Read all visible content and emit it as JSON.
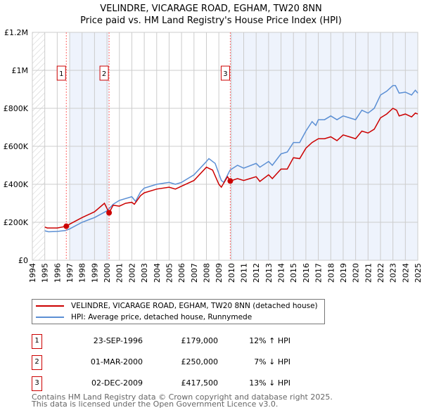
{
  "chart_data": {
    "type": "line",
    "title": "VELINDRE, VICARAGE ROAD, EGHAM, TW20 8NN",
    "subtitle": "Price paid vs. HM Land Registry's House Price Index (HPI)",
    "xlim": [
      1994,
      2025
    ],
    "ylim": [
      0,
      1200000
    ],
    "x_ticks": [
      "1994",
      "1995",
      "1996",
      "1997",
      "1998",
      "1999",
      "2000",
      "2001",
      "2002",
      "2003",
      "2004",
      "2005",
      "2006",
      "2007",
      "2008",
      "2009",
      "2010",
      "2011",
      "2012",
      "2013",
      "2014",
      "2015",
      "2016",
      "2017",
      "2018",
      "2019",
      "2020",
      "2021",
      "2022",
      "2023",
      "2024",
      "2025"
    ],
    "y_ticks": [
      {
        "v": 0,
        "label": "£0"
      },
      {
        "v": 200000,
        "label": "£200K"
      },
      {
        "v": 400000,
        "label": "£400K"
      },
      {
        "v": 600000,
        "label": "£600K"
      },
      {
        "v": 800000,
        "label": "£800K"
      },
      {
        "v": 1000000,
        "label": "£1M"
      },
      {
        "v": 1200000,
        "label": "£1.2M"
      }
    ],
    "grid": true,
    "series": [
      {
        "name": "VELINDRE, VICARAGE ROAD, EGHAM, TW20 8NN (detached house)",
        "color": "#cc0000",
        "x": [
          1995,
          1995.2,
          1996,
          1996.73,
          1997,
          1998,
          1999,
          1999.8,
          2000.1,
          2000.17,
          2000.5,
          2001,
          2001.5,
          2002,
          2002.2,
          2002.7,
          2003,
          2004,
          2005,
          2005.5,
          2006,
          2007,
          2008,
          2008.5,
          2009,
          2009.2,
          2009.7,
          2009.92,
          2010.5,
          2011,
          2011.5,
          2012,
          2012.3,
          2013,
          2013.3,
          2014,
          2014.5,
          2015,
          2015.5,
          2016,
          2016.5,
          2017,
          2017.5,
          2018,
          2018.5,
          2019,
          2019.5,
          2020,
          2020.5,
          2021,
          2021.5,
          2022,
          2022.5,
          2023,
          2023.3,
          2023.5,
          2024,
          2024.5,
          2024.8,
          2025
        ],
        "y": [
          175,
          170,
          170,
          179,
          190,
          225,
          255,
          300,
          260,
          250,
          290,
          285,
          300,
          305,
          295,
          340,
          355,
          375,
          385,
          375,
          390,
          420,
          490,
          475,
          400,
          385,
          440,
          417.5,
          430,
          420,
          430,
          440,
          415,
          450,
          430,
          480,
          480,
          540,
          535,
          590,
          620,
          640,
          640,
          650,
          630,
          660,
          650,
          640,
          680,
          670,
          690,
          750,
          770,
          800,
          790,
          760,
          770,
          755,
          775,
          770
        ]
      },
      {
        "name": "HPI: Average price, detached house, Runnymede",
        "color": "#5b8fd4",
        "x": [
          1995,
          1995.3,
          1996,
          1996.7,
          1997,
          1998,
          1999,
          2000,
          2000.5,
          2001,
          2002,
          2002.3,
          2002.7,
          2003,
          2004,
          2005,
          2005.5,
          2006,
          2007,
          2008,
          2008.2,
          2008.7,
          2009.2,
          2009.4,
          2009.9,
          2010.5,
          2011,
          2012,
          2012.3,
          2013,
          2013.3,
          2014,
          2014.5,
          2015,
          2015.5,
          2016,
          2016.5,
          2016.8,
          2017,
          2017.5,
          2018,
          2018.5,
          2019,
          2019.5,
          2020,
          2020.5,
          2021,
          2021.5,
          2022,
          2022.5,
          2023,
          2023.2,
          2023.5,
          2024,
          2024.5,
          2024.8,
          2025
        ],
        "y": [
          155,
          150,
          152,
          157,
          165,
          200,
          225,
          260,
          295,
          315,
          335,
          310,
          360,
          380,
          400,
          410,
          400,
          410,
          450,
          520,
          535,
          510,
          420,
          410,
          475,
          500,
          485,
          510,
          490,
          520,
          500,
          560,
          570,
          620,
          620,
          680,
          730,
          710,
          740,
          740,
          760,
          740,
          760,
          750,
          740,
          790,
          775,
          800,
          870,
          890,
          920,
          920,
          880,
          885,
          870,
          895,
          880
        ]
      }
    ],
    "y_units": "thousands GBP",
    "sales": [
      {
        "label": "1",
        "x": 1996.73,
        "y": 179
      },
      {
        "label": "2",
        "x": 2000.17,
        "y": 250
      },
      {
        "label": "3",
        "x": 2009.92,
        "y": 417.5
      }
    ],
    "shaded_ranges": [
      [
        1997.0,
        2000.17
      ],
      [
        2009.92,
        2025
      ]
    ],
    "hatched_range": [
      1994,
      1995
    ]
  },
  "legend": {
    "property": "VELINDRE, VICARAGE ROAD, EGHAM, TW20 8NN (detached house)",
    "hpi": "HPI: Average price, detached house, Runnymede"
  },
  "sales_table": [
    {
      "num": "1",
      "date": "23-SEP-1996",
      "price": "£179,000",
      "hpi": "12% ↑ HPI"
    },
    {
      "num": "2",
      "date": "01-MAR-2000",
      "price": "£250,000",
      "hpi": "7% ↓ HPI"
    },
    {
      "num": "3",
      "date": "02-DEC-2009",
      "price": "£417,500",
      "hpi": "13% ↓ HPI"
    }
  ],
  "footer": {
    "line1": "Contains HM Land Registry data © Crown copyright and database right 2025.",
    "line2": "This data is licensed under the Open Government Licence v3.0."
  },
  "colors": {
    "property": "#cc0000",
    "hpi": "#5b8fd4",
    "shade": "#eef3fc"
  }
}
